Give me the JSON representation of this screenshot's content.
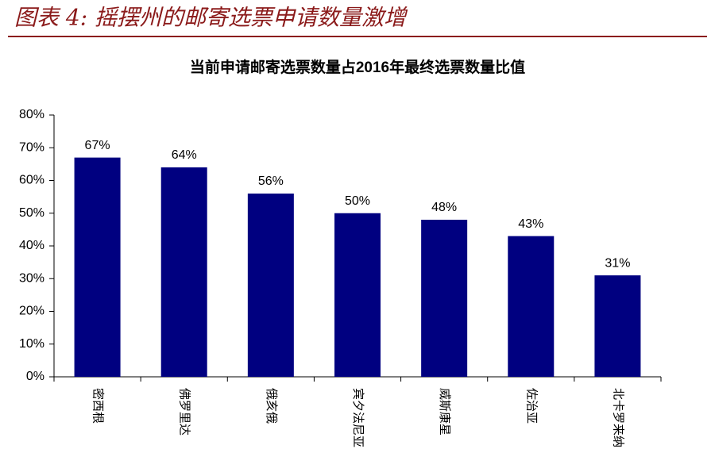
{
  "header": {
    "title": "图表 4:  摇摆州的邮寄选票申请数量激增"
  },
  "chart_data": {
    "type": "bar",
    "title": "当前申请邮寄选票数量占2016年最终选票数量比值",
    "categories": [
      "密西根",
      "佛罗里达",
      "俄亥俄",
      "宾夕法尼亚",
      "威斯康星",
      "佐治亚",
      "北卡罗来纳"
    ],
    "values": [
      67,
      64,
      56,
      50,
      48,
      43,
      31
    ],
    "value_labels": [
      "67%",
      "64%",
      "56%",
      "50%",
      "48%",
      "43%",
      "31%"
    ],
    "color": "#000080",
    "ylim": [
      0,
      80
    ],
    "yticks": [
      {
        "value": 0,
        "label": "0%"
      },
      {
        "value": 10,
        "label": "10%"
      },
      {
        "value": 20,
        "label": "20%"
      },
      {
        "value": 30,
        "label": "30%"
      },
      {
        "value": 40,
        "label": "40%"
      },
      {
        "value": 50,
        "label": "50%"
      },
      {
        "value": 60,
        "label": "60%"
      },
      {
        "value": 70,
        "label": "70%"
      },
      {
        "value": 80,
        "label": "80%"
      }
    ],
    "grid": false
  }
}
